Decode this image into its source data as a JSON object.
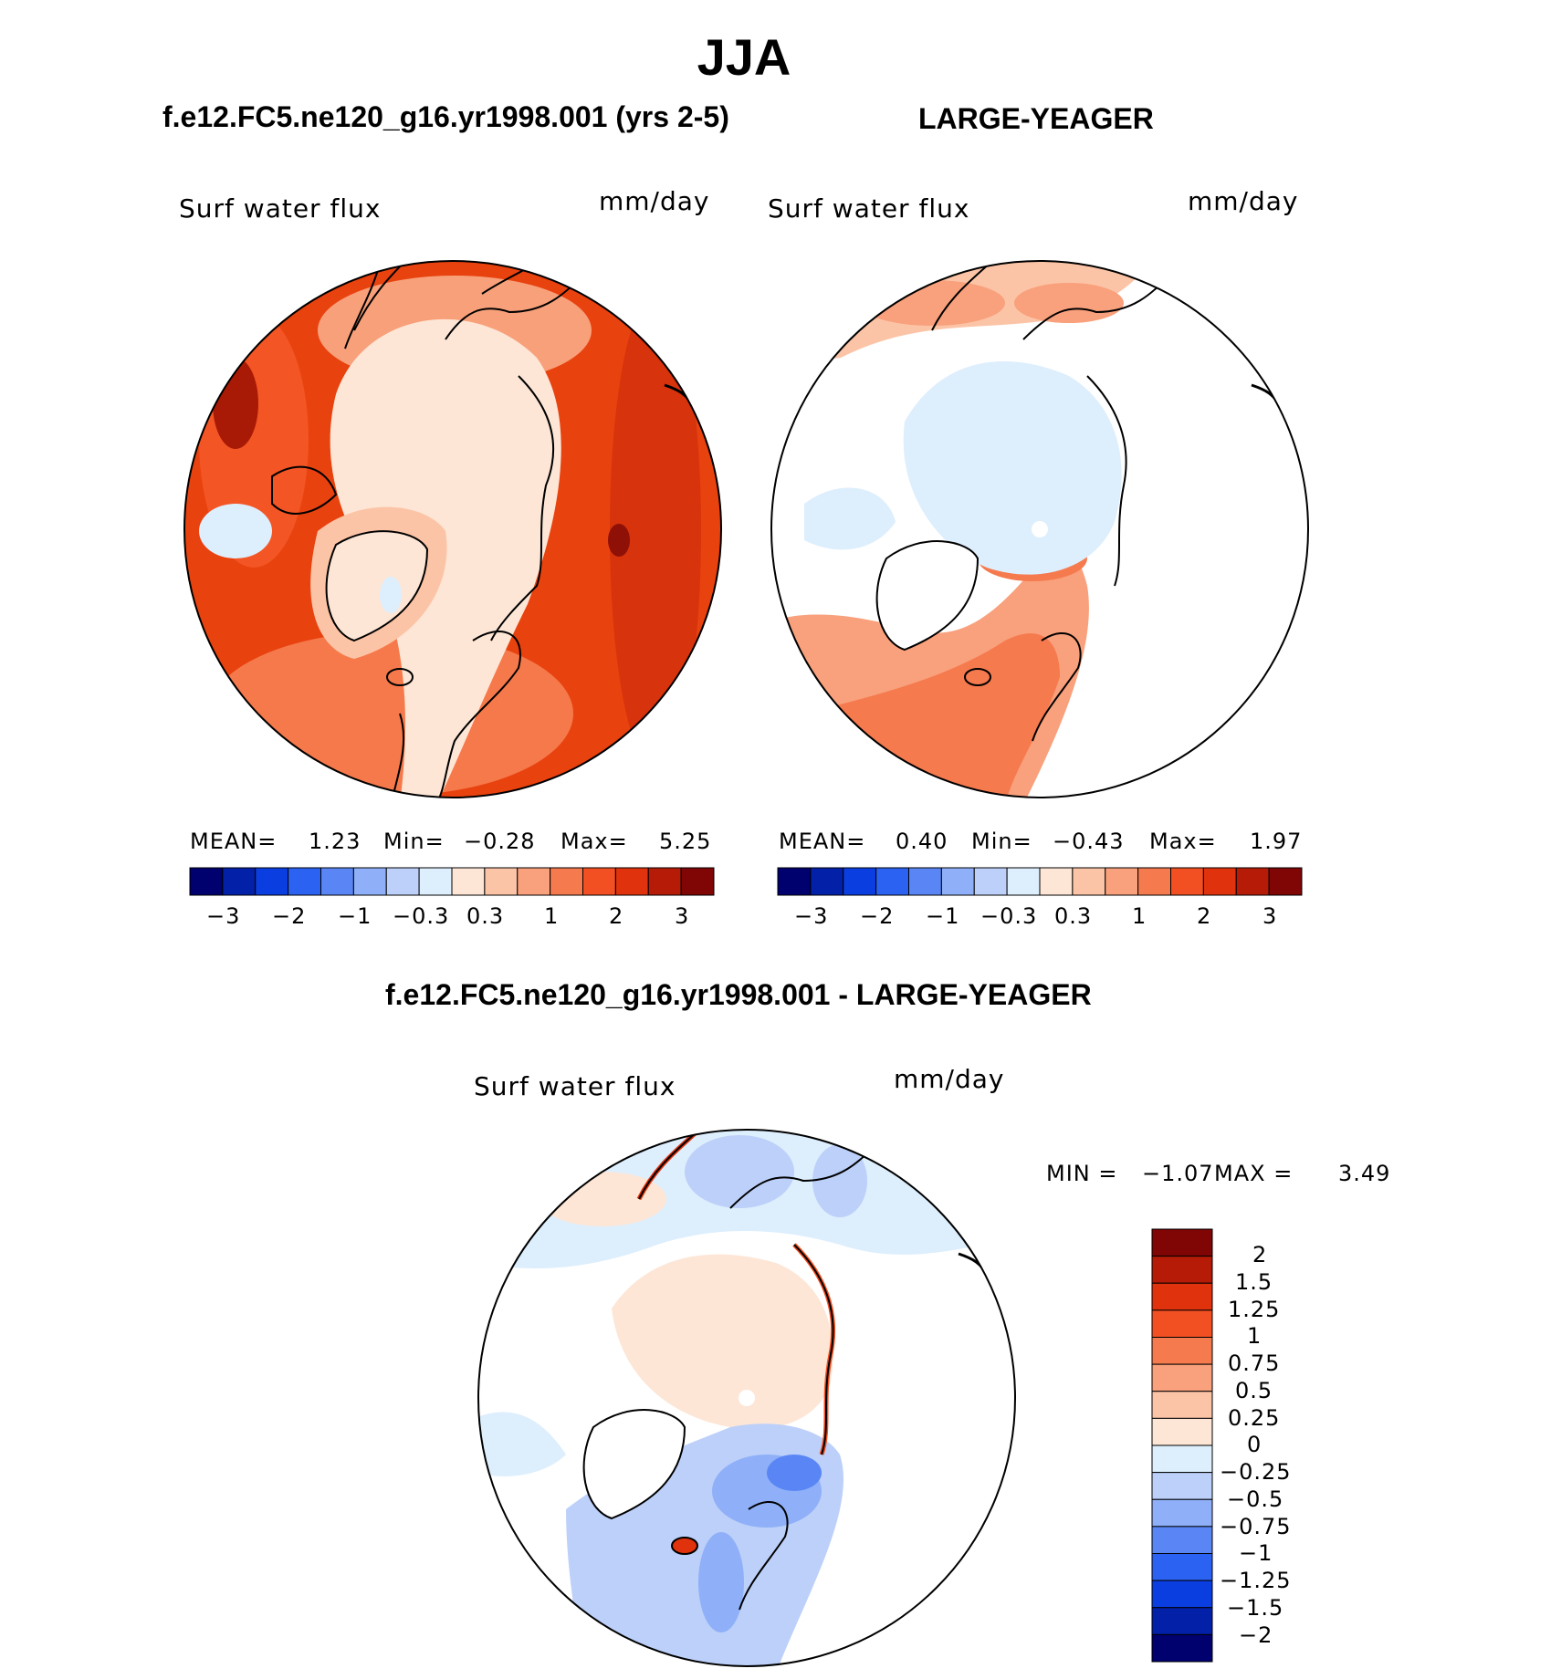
{
  "main_title": "JJA",
  "panels": [
    {
      "title": "f.e12.FC5.ne120_g16.yr1998.001 (yrs 2-5)",
      "variable": "Surf  water  flux",
      "units": "mm/day",
      "stats": {
        "mean_label": "MEAN=",
        "mean": "1.23",
        "min_label": "Min=",
        "min": "−0.28",
        "max_label": "Max=",
        "max": "5.25"
      }
    },
    {
      "title": "LARGE-YEAGER",
      "variable": "Surf  water  flux",
      "units": "mm/day",
      "stats": {
        "mean_label": "MEAN=",
        "mean": "0.40",
        "min_label": "Min=",
        "min": "−0.43",
        "max_label": "Max=",
        "max": "1.97"
      }
    },
    {
      "title": "f.e12.FC5.ne120_g16.yr1998.001 - LARGE-YEAGER",
      "variable": "Surf  water  flux",
      "units": "mm/day",
      "stats": {
        "min_label": "MIN =",
        "min": "−1.07",
        "max_label": "MAX =",
        "max": "3.49"
      }
    }
  ],
  "colorbar_horizontal": {
    "tick_labels": [
      "−3",
      "−2",
      "−1",
      "−0.3",
      "0.3",
      "1",
      "2",
      "3"
    ],
    "colors": [
      "#00006e",
      "#0320a8",
      "#0a3ee0",
      "#2c62f2",
      "#5a86f5",
      "#8fb0f8",
      "#bcd0f9",
      "#ddeefd",
      "#fde6d6",
      "#fcc4a6",
      "#f9a07c",
      "#f57a4e",
      "#f24f22",
      "#e0320c",
      "#b51b07",
      "#800505"
    ]
  },
  "colorbar_vertical": {
    "tick_labels": [
      "2",
      "1.5",
      "1.25",
      "1",
      "0.75",
      "0.5",
      "0.25",
      "0",
      "−0.25",
      "−0.5",
      "−0.75",
      "−1",
      "−1.25",
      "−1.5",
      "−2"
    ],
    "colors": [
      "#800505",
      "#b51b07",
      "#e0320c",
      "#f24f22",
      "#f57a4e",
      "#f9a07c",
      "#fcc4a6",
      "#fde6d6",
      "#ddeefd",
      "#bcd0f9",
      "#8fb0f8",
      "#5a86f5",
      "#2c62f2",
      "#0a3ee0",
      "#0320a8",
      "#00006e"
    ]
  },
  "chart_data": [
    {
      "type": "heatmap",
      "title": "f.e12.FC5.ne120_g16.yr1998.001 (yrs 2-5)",
      "variable": "Surf water flux",
      "units": "mm/day",
      "projection": "north polar stereographic",
      "mean": 1.23,
      "min": -0.28,
      "max": 5.25,
      "contour_levels": [
        -3,
        -2.5,
        -2,
        -1.5,
        -1,
        -0.6,
        -0.3,
        0,
        0.3,
        0.6,
        1,
        1.5,
        2,
        2.5,
        3
      ]
    },
    {
      "type": "heatmap",
      "title": "LARGE-YEAGER",
      "variable": "Surf water flux",
      "units": "mm/day",
      "projection": "north polar stereographic",
      "mean": 0.4,
      "min": -0.43,
      "max": 1.97,
      "contour_levels": [
        -3,
        -2.5,
        -2,
        -1.5,
        -1,
        -0.6,
        -0.3,
        0,
        0.3,
        0.6,
        1,
        1.5,
        2,
        2.5,
        3
      ]
    },
    {
      "type": "heatmap",
      "title": "f.e12.FC5.ne120_g16.yr1998.001 - LARGE-YEAGER",
      "variable": "Surf water flux",
      "units": "mm/day",
      "projection": "north polar stereographic",
      "min": -1.07,
      "max": 3.49,
      "contour_levels": [
        -2,
        -1.5,
        -1.25,
        -1,
        -0.75,
        -0.5,
        -0.25,
        0,
        0.25,
        0.5,
        0.75,
        1,
        1.25,
        1.5,
        2
      ]
    }
  ]
}
